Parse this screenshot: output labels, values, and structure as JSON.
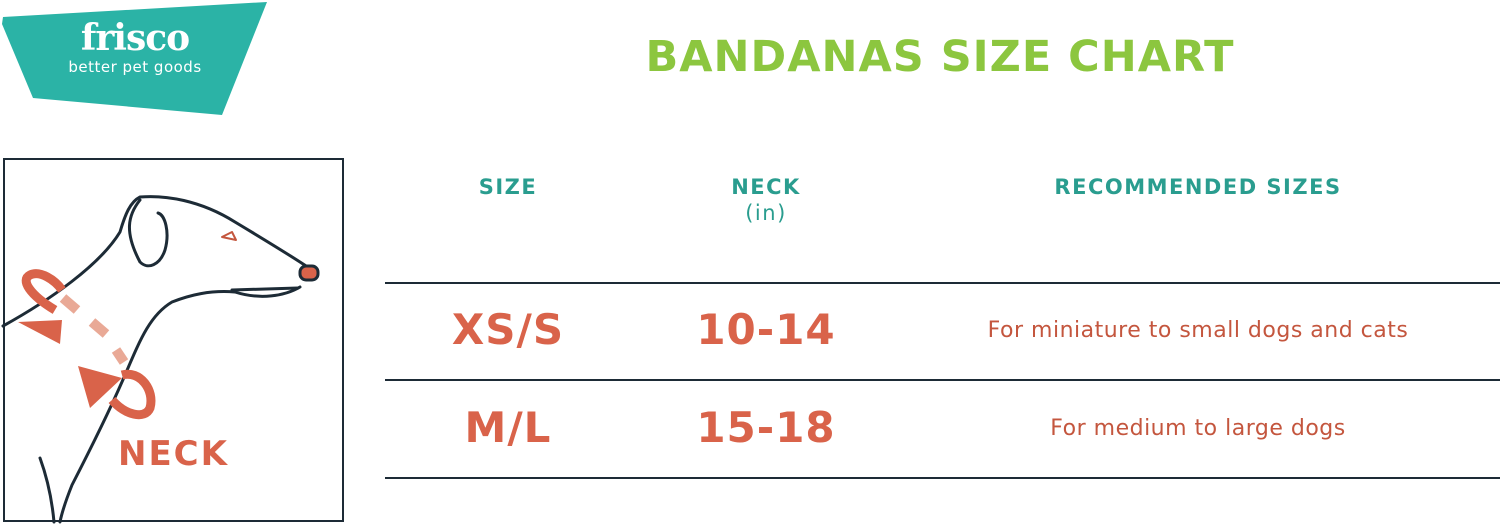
{
  "logo": {
    "name": "frisco",
    "tagline": "better pet goods",
    "color": "#2bb3a6"
  },
  "title": "BANDANAS SIZE CHART",
  "illustration": {
    "label": "NECK"
  },
  "table": {
    "headers": {
      "size": "SIZE",
      "neck": "NECK",
      "neck_unit": "(in)",
      "recommended": "RECOMMENDED SIZES"
    },
    "rows": [
      {
        "size": "XS/S",
        "neck": "10-14",
        "recommended": "For miniature to small dogs and cats"
      },
      {
        "size": "M/L",
        "neck": "15-18",
        "recommended": "For medium to large dogs"
      }
    ]
  },
  "colors": {
    "title": "#8cc63f",
    "header": "#2a9d8f",
    "accent": "#d9634a",
    "line": "#1d2b36"
  }
}
